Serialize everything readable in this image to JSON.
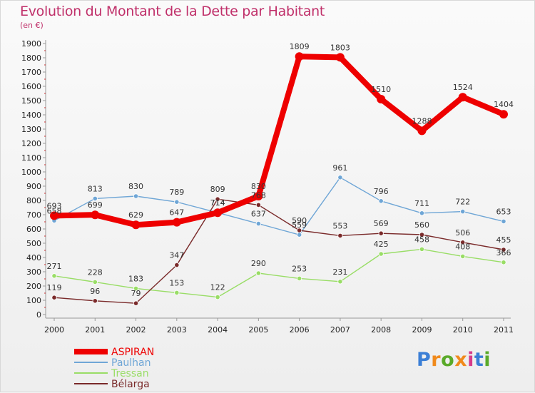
{
  "chart_data": {
    "type": "line",
    "title": "Evolution du Montant de la Dette par Habitant",
    "subtitle": "(en €)",
    "xlabel": "",
    "ylabel": "",
    "x": [
      "2000",
      "2001",
      "2002",
      "2003",
      "2004",
      "2005",
      "2006",
      "2007",
      "2008",
      "2009",
      "2010",
      "2011"
    ],
    "ylim": [
      0,
      1900
    ],
    "ytick_step": 100,
    "grid": false,
    "legend_position": "bottom-left",
    "series": [
      {
        "name": "ASPIRAN",
        "color": "#ee0000",
        "values": [
          693,
          699,
          629,
          647,
          714,
          830,
          1809,
          1803,
          1510,
          1288,
          1524,
          1404
        ],
        "labels": [
          "693",
          "699",
          "629",
          "647",
          "714",
          "830",
          "1809",
          "1803",
          "1510",
          "1288",
          "1524",
          "1404"
        ]
      },
      {
        "name": "Paulhan",
        "color": "#6fa6d6",
        "values": [
          658,
          813,
          830,
          789,
          714,
          637,
          559,
          961,
          796,
          711,
          722,
          653
        ],
        "labels": [
          "658",
          "813",
          "830",
          "789",
          "714",
          "637",
          "559",
          "961",
          "796",
          "711",
          "722",
          "653"
        ]
      },
      {
        "name": "Tressan",
        "color": "#99dd66",
        "values": [
          271,
          228,
          183,
          153,
          122,
          290,
          253,
          231,
          425,
          458,
          408,
          366
        ],
        "labels": [
          "271",
          "228",
          "183",
          "153",
          "122",
          "290",
          "253",
          "231",
          "425",
          "458",
          "408",
          "366"
        ]
      },
      {
        "name": "Bélarga",
        "color": "#7a2a2a",
        "values": [
          119,
          96,
          79,
          347,
          809,
          768,
          590,
          553,
          569,
          560,
          506,
          455
        ],
        "labels": [
          "119",
          "96",
          "79",
          "347",
          "809",
          "768",
          "590",
          "553",
          "569",
          "560",
          "506",
          "455"
        ]
      }
    ]
  },
  "brand": {
    "text": "Proxiti",
    "colors": [
      "#3b7fd6",
      "#f08a1c",
      "#5aaa2a",
      "#f08a1c",
      "#d63b8a",
      "#3b7fd6",
      "#5aaa2a"
    ]
  }
}
